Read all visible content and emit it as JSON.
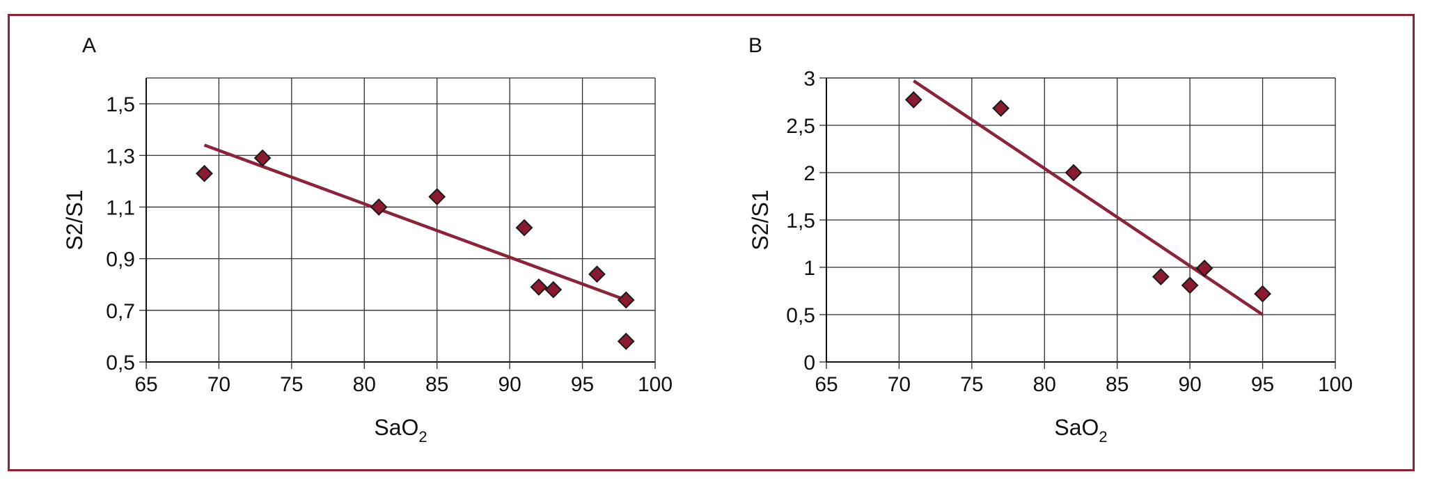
{
  "colors": {
    "frame": "#8b2339",
    "marker": "#8b1a2f",
    "line": "#8b2339",
    "grid": "#2b2b2b"
  },
  "chart_data": [
    {
      "type": "scatter",
      "panel_label": "A",
      "xlabel": "SaO",
      "xlabel_sub": "2",
      "ylabel": "S2/S1",
      "xlim": [
        65,
        100
      ],
      "ylim": [
        0.5,
        1.6
      ],
      "x_ticks": [
        "65",
        "70",
        "75",
        "80",
        "85",
        "90",
        "95",
        "100"
      ],
      "y_ticks": [
        "0,5",
        "0,7",
        "0,9",
        "1,1",
        "1,3",
        "1,5"
      ],
      "grid": true,
      "points": [
        {
          "x": 69,
          "y": 1.23
        },
        {
          "x": 73,
          "y": 1.29
        },
        {
          "x": 81,
          "y": 1.1
        },
        {
          "x": 85,
          "y": 1.14
        },
        {
          "x": 91,
          "y": 1.02
        },
        {
          "x": 92,
          "y": 0.79
        },
        {
          "x": 93,
          "y": 0.78
        },
        {
          "x": 96,
          "y": 0.84
        },
        {
          "x": 98,
          "y": 0.74
        },
        {
          "x": 98,
          "y": 0.58
        }
      ],
      "trendline": [
        {
          "x": 69,
          "y": 1.34
        },
        {
          "x": 98,
          "y": 0.74
        }
      ]
    },
    {
      "type": "scatter",
      "panel_label": "B",
      "xlabel": "SaO",
      "xlabel_sub": "2",
      "ylabel": "S2/S1",
      "xlim": [
        65,
        100
      ],
      "ylim": [
        0,
        3
      ],
      "x_ticks": [
        "65",
        "70",
        "75",
        "80",
        "85",
        "90",
        "95",
        "100"
      ],
      "y_ticks": [
        "0",
        "0,5",
        "1",
        "1,5",
        "2",
        "2,5",
        "3"
      ],
      "grid": true,
      "points": [
        {
          "x": 71,
          "y": 2.77
        },
        {
          "x": 77,
          "y": 2.68
        },
        {
          "x": 82,
          "y": 2.0
        },
        {
          "x": 88,
          "y": 0.9
        },
        {
          "x": 90,
          "y": 0.81
        },
        {
          "x": 91,
          "y": 0.99
        },
        {
          "x": 95,
          "y": 0.72
        }
      ],
      "trendline": [
        {
          "x": 71,
          "y": 2.97
        },
        {
          "x": 95,
          "y": 0.5
        }
      ]
    }
  ]
}
